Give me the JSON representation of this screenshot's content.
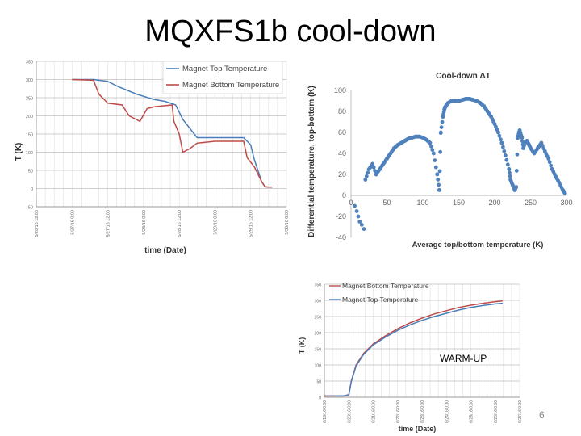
{
  "slide": {
    "title": "MQXFS1b cool-down",
    "page_number": "6"
  },
  "colors": {
    "blue": "#4a7ebb",
    "red": "#be4b48",
    "diff": "#4f81bd"
  },
  "chart_data": [
    {
      "type": "line",
      "title": "",
      "xlabel": "time (Date)",
      "ylabel": "T (K)",
      "ylim": [
        -50,
        350
      ],
      "yticks": [
        "350",
        "300",
        "250",
        "200",
        "150",
        "100",
        "50",
        "0",
        "-50"
      ],
      "xticks": [
        "5/26/16 12:00",
        "5/27/16 0:00",
        "5/27/16 12:00",
        "5/28/16 0:00",
        "5/28/16 12:00",
        "5/29/16 0:00",
        "5/29/16 12:00",
        "5/30/16 0:00"
      ],
      "x_range": [
        0,
        7
      ],
      "legend": {
        "position": "top-right",
        "entries": [
          "Magnet Top Temperature",
          "Magnet Bottom Temperature"
        ]
      },
      "series": [
        {
          "name": "Magnet Top Temperature",
          "color": "blue",
          "x": [
            1.0,
            1.6,
            2.0,
            2.3,
            2.8,
            3.3,
            3.6,
            3.9,
            4.1,
            4.5,
            5.0,
            5.4,
            5.8,
            6.0,
            6.1,
            6.2,
            6.3,
            6.4,
            6.5,
            6.6
          ],
          "y": [
            300,
            300,
            295,
            280,
            260,
            245,
            240,
            230,
            190,
            140,
            140,
            140,
            140,
            120,
            80,
            50,
            20,
            5,
            4,
            4
          ]
        },
        {
          "name": "Magnet Bottom Temperature",
          "color": "red",
          "x": [
            1.0,
            1.6,
            1.75,
            1.85,
            2.0,
            2.4,
            2.6,
            2.9,
            3.1,
            3.3,
            3.6,
            3.8,
            3.85,
            4.0,
            4.1,
            4.3,
            4.5,
            5.0,
            5.5,
            5.8,
            5.9,
            6.1,
            6.2,
            6.3,
            6.4,
            6.5,
            6.6
          ],
          "y": [
            300,
            298,
            260,
            250,
            235,
            230,
            200,
            185,
            220,
            225,
            228,
            230,
            185,
            150,
            100,
            110,
            125,
            130,
            130,
            130,
            85,
            60,
            40,
            20,
            5,
            4,
            4
          ]
        }
      ]
    },
    {
      "type": "scatter",
      "title": "Cool-down ΔT",
      "xlabel": "Average top/bottom temperature (K)",
      "ylabel": "Differential temperature, top-bottom (K)",
      "xlim": [
        0,
        300
      ],
      "ylim": [
        -40,
        100
      ],
      "xticks": [
        0,
        50,
        100,
        150,
        200,
        250,
        300
      ],
      "yticks": [
        -40,
        -20,
        0,
        20,
        40,
        60,
        80,
        100
      ],
      "series": [
        {
          "name": "ΔT",
          "color": "diff",
          "x": [
            5,
            8,
            10,
            12,
            15,
            18,
            20,
            25,
            30,
            35,
            40,
            45,
            50,
            55,
            60,
            65,
            70,
            75,
            80,
            85,
            90,
            95,
            100,
            105,
            110,
            115,
            120,
            123,
            125,
            128,
            130,
            131,
            132,
            135,
            140,
            145,
            150,
            155,
            160,
            165,
            170,
            175,
            180,
            185,
            190,
            195,
            200,
            205,
            210,
            215,
            220,
            222,
            225,
            228,
            230,
            232,
            234,
            235,
            238,
            240,
            242,
            245,
            248,
            250,
            255,
            260,
            265,
            270,
            275,
            280,
            285,
            290,
            295,
            298
          ],
          "y": [
            -10,
            -15,
            -20,
            -25,
            -28,
            -32,
            15,
            25,
            30,
            20,
            25,
            30,
            35,
            40,
            45,
            48,
            50,
            52,
            54,
            55,
            56,
            56,
            55,
            53,
            50,
            40,
            20,
            5,
            60,
            75,
            82,
            84,
            85,
            88,
            90,
            90,
            90,
            91,
            92,
            92,
            91,
            90,
            88,
            85,
            80,
            75,
            68,
            60,
            50,
            38,
            25,
            15,
            10,
            5,
            8,
            55,
            60,
            62,
            55,
            45,
            50,
            52,
            48,
            45,
            40,
            45,
            50,
            42,
            35,
            25,
            18,
            12,
            5,
            2
          ]
        }
      ]
    },
    {
      "type": "line",
      "title": "",
      "annotation": "WARM-UP",
      "xlabel": "time (Date)",
      "ylabel": "T (K)",
      "ylim": [
        0,
        350
      ],
      "yticks": [
        "350",
        "300",
        "250",
        "200",
        "150",
        "100",
        "50",
        "0"
      ],
      "xticks": [
        "6/19/16 0:00",
        "6/20/16 0:00",
        "6/21/16 0:00",
        "6/22/16 0:00",
        "6/23/16 0:00",
        "6/24/16 0:00",
        "6/25/16 0:00",
        "6/26/16 0:00",
        "6/27/16 0:00"
      ],
      "x_range": [
        0,
        8
      ],
      "legend": {
        "position": "top-left",
        "entries": [
          "Magnet Bottom Temperature",
          "Magnet Top Temperature"
        ]
      },
      "series": [
        {
          "name": "Magnet Bottom Temperature",
          "color": "red",
          "x": [
            0,
            0.8,
            1.0,
            1.1,
            1.3,
            1.6,
            2.0,
            2.5,
            3.0,
            3.5,
            4.0,
            4.5,
            5.0,
            5.5,
            6.0,
            6.5,
            7.0,
            7.3
          ],
          "y": [
            4,
            4,
            8,
            50,
            100,
            135,
            165,
            190,
            212,
            230,
            245,
            258,
            268,
            278,
            285,
            291,
            296,
            298
          ]
        },
        {
          "name": "Magnet Top Temperature",
          "color": "blue",
          "x": [
            0,
            0.8,
            1.0,
            1.1,
            1.3,
            1.6,
            2.0,
            2.5,
            3.0,
            3.5,
            4.0,
            4.5,
            5.0,
            5.5,
            6.0,
            6.5,
            7.0,
            7.3
          ],
          "y": [
            4,
            4,
            8,
            48,
            97,
            132,
            162,
            186,
            207,
            224,
            238,
            250,
            260,
            270,
            278,
            284,
            289,
            291
          ]
        }
      ]
    }
  ]
}
